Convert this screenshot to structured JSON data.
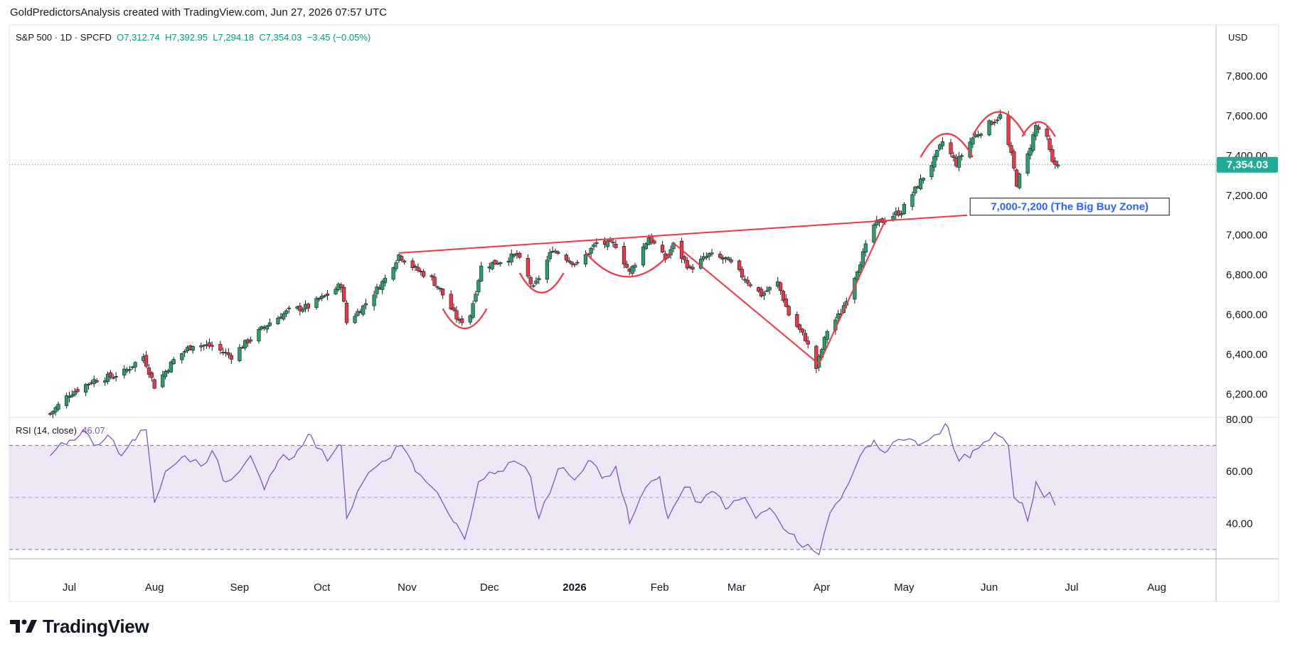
{
  "header": {
    "title": "GoldPredictorsAnalysis created with TradingView.com, Jun 27, 2026 07:57 UTC"
  },
  "legend": {
    "symbol": "S&P 500 · 1D · SPCFD",
    "open": "O7,312.74",
    "high": "H7,392.95",
    "low": "L7,294.18",
    "close": "C7,354.03",
    "change": "−3.45 (−0.05%)"
  },
  "currency": "USD",
  "last_price_label": "7,354.03",
  "annotation": "7,000-7,200 (The Big Buy Zone)",
  "rsi": {
    "label": "RSI (14, close)",
    "value": "46.07"
  },
  "footer": {
    "brand": "TradingView"
  },
  "colors": {
    "up": "#089981",
    "down": "#f23645",
    "up_fill": "#26a269",
    "pattern": "#f23645",
    "rsi_line": "#7e57c2",
    "rsi_band": "#ede7f6",
    "annotation_text": "#2962ff",
    "last_price_bg": "#22ab94"
  },
  "chart_data": [
    {
      "type": "candlestick",
      "title": "S&P 500 · 1D · SPCFD",
      "x_tick_labels": [
        "Jul",
        "Aug",
        "Sep",
        "Oct",
        "Nov",
        "Dec",
        "2026",
        "Feb",
        "Mar",
        "Apr",
        "May",
        "Jun",
        "Jul",
        "Aug"
      ],
      "y_tick_labels": [
        "6,200.00",
        "6,400.00",
        "6,600.00",
        "6,800.00",
        "7,000.00",
        "7,200.00",
        "7,400.00",
        "7,600.00",
        "7,800.00"
      ],
      "ylim": [
        6090,
        8040
      ],
      "last_price": 7354.03,
      "grid": false,
      "close_path": [
        [
          "2025-06-24",
          6100
        ],
        [
          "2025-07-01",
          6200
        ],
        [
          "2025-07-10",
          6270
        ],
        [
          "2025-07-20",
          6300
        ],
        [
          "2025-07-28",
          6390
        ],
        [
          "2025-08-01",
          6240
        ],
        [
          "2025-08-08",
          6370
        ],
        [
          "2025-08-15",
          6450
        ],
        [
          "2025-08-22",
          6440
        ],
        [
          "2025-08-29",
          6390
        ],
        [
          "2025-09-05",
          6480
        ],
        [
          "2025-09-12",
          6560
        ],
        [
          "2025-09-19",
          6620
        ],
        [
          "2025-09-26",
          6640
        ],
        [
          "2025-10-03",
          6700
        ],
        [
          "2025-10-08",
          6750
        ],
        [
          "2025-10-10",
          6560
        ],
        [
          "2025-10-16",
          6640
        ],
        [
          "2025-10-24",
          6780
        ],
        [
          "2025-10-29",
          6900
        ],
        [
          "2025-11-04",
          6830
        ],
        [
          "2025-11-10",
          6780
        ],
        [
          "2025-11-14",
          6700
        ],
        [
          "2025-11-20",
          6560
        ],
        [
          "2025-11-24",
          6600
        ],
        [
          "2025-11-28",
          6840
        ],
        [
          "2025-12-05",
          6870
        ],
        [
          "2025-12-11",
          6900
        ],
        [
          "2025-12-17",
          6730
        ],
        [
          "2025-12-24",
          6930
        ],
        [
          "2026-01-02",
          6850
        ],
        [
          "2026-01-09",
          6960
        ],
        [
          "2026-01-16",
          6950
        ],
        [
          "2026-01-21",
          6810
        ],
        [
          "2026-01-28",
          6990
        ],
        [
          "2026-02-03",
          6880
        ],
        [
          "2026-02-06",
          6950
        ],
        [
          "2026-02-12",
          6830
        ],
        [
          "2026-02-19",
          6900
        ],
        [
          "2026-02-26",
          6870
        ],
        [
          "2026-03-04",
          6780
        ],
        [
          "2026-03-10",
          6700
        ],
        [
          "2026-03-16",
          6760
        ],
        [
          "2026-03-20",
          6600
        ],
        [
          "2026-03-26",
          6480
        ],
        [
          "2026-03-30",
          6330
        ],
        [
          "2026-04-03",
          6520
        ],
        [
          "2026-04-08",
          6610
        ],
        [
          "2026-04-14",
          6830
        ],
        [
          "2026-04-20",
          7050
        ],
        [
          "2026-04-24",
          7080
        ],
        [
          "2026-04-30",
          7120
        ],
        [
          "2026-05-06",
          7250
        ],
        [
          "2026-05-12",
          7380
        ],
        [
          "2026-05-15",
          7470
        ],
        [
          "2026-05-20",
          7360
        ],
        [
          "2026-05-26",
          7490
        ],
        [
          "2026-06-01",
          7560
        ],
        [
          "2026-06-05",
          7600
        ],
        [
          "2026-06-09",
          7400
        ],
        [
          "2026-06-11",
          7260
        ],
        [
          "2026-06-15",
          7400
        ],
        [
          "2026-06-18",
          7550
        ],
        [
          "2026-06-22",
          7480
        ],
        [
          "2026-06-24",
          7360
        ],
        [
          "2026-06-26",
          7354.03
        ]
      ],
      "annotations": [
        {
          "type": "trendline",
          "points": [
            [
              "2025-10-29",
              6910
            ],
            [
              "2026-05-24",
              7100
            ]
          ]
        },
        {
          "type": "line",
          "points": [
            [
              "2026-02-06",
              6960
            ],
            [
              "2026-03-31",
              6350
            ]
          ]
        },
        {
          "type": "line",
          "points": [
            [
              "2026-03-31",
              6350
            ],
            [
              "2026-04-24",
              7070
            ]
          ]
        },
        {
          "type": "arc",
          "from": "2025-11-14",
          "to": "2025-11-30",
          "level": 6530
        },
        {
          "type": "arc",
          "from": "2025-12-12",
          "to": "2025-12-28",
          "level": 6710
        },
        {
          "type": "arc",
          "from": "2026-01-05",
          "to": "2026-02-05",
          "level": 6790
        },
        {
          "type": "arc_top",
          "from": "2026-05-07",
          "to": "2026-05-26",
          "level": 7510
        },
        {
          "type": "arc_top",
          "from": "2026-05-26",
          "to": "2026-06-14",
          "level": 7620
        },
        {
          "type": "arc_top",
          "from": "2026-06-13",
          "to": "2026-06-25",
          "level": 7570
        },
        {
          "type": "label",
          "text": "7,000-7,200 (The Big Buy Zone)",
          "at": [
            "2026-05-24",
            7100
          ]
        }
      ]
    },
    {
      "type": "line",
      "title": "RSI (14, close)",
      "y_tick_labels": [
        "40.00",
        "60.00",
        "80.00"
      ],
      "ylim": [
        27,
        80
      ],
      "bands": [
        30,
        50,
        70
      ],
      "last_value": 46.07,
      "series": [
        {
          "values": [
            [
              "2025-06-24",
              66
            ],
            [
              "2025-07-01",
              72
            ],
            [
              "2025-07-06",
              76
            ],
            [
              "2025-07-10",
              70
            ],
            [
              "2025-07-15",
              74
            ],
            [
              "2025-07-20",
              66
            ],
            [
              "2025-07-25",
              72
            ],
            [
              "2025-07-29",
              76
            ],
            [
              "2025-08-01",
              48
            ],
            [
              "2025-08-05",
              60
            ],
            [
              "2025-08-12",
              66
            ],
            [
              "2025-08-18",
              62
            ],
            [
              "2025-08-22",
              68
            ],
            [
              "2025-08-27",
              56
            ],
            [
              "2025-09-01",
              60
            ],
            [
              "2025-09-05",
              66
            ],
            [
              "2025-09-10",
              53
            ],
            [
              "2025-09-15",
              64
            ],
            [
              "2025-09-22",
              68
            ],
            [
              "2025-09-27",
              74
            ],
            [
              "2025-10-03",
              64
            ],
            [
              "2025-10-08",
              70
            ],
            [
              "2025-10-10",
              42
            ],
            [
              "2025-10-16",
              56
            ],
            [
              "2025-10-21",
              62
            ],
            [
              "2025-10-24",
              64
            ],
            [
              "2025-10-30",
              70
            ],
            [
              "2025-11-04",
              60
            ],
            [
              "2025-11-10",
              54
            ],
            [
              "2025-11-14",
              48
            ],
            [
              "2025-11-19",
              40
            ],
            [
              "2025-11-22",
              34
            ],
            [
              "2025-11-27",
              56
            ],
            [
              "2025-12-04",
              60
            ],
            [
              "2025-12-10",
              64
            ],
            [
              "2025-12-16",
              58
            ],
            [
              "2025-12-19",
              42
            ],
            [
              "2025-12-26",
              61
            ],
            [
              "2026-01-02",
              58
            ],
            [
              "2026-01-07",
              64
            ],
            [
              "2026-01-12",
              58
            ],
            [
              "2026-01-16",
              62
            ],
            [
              "2026-01-21",
              40
            ],
            [
              "2026-01-27",
              54
            ],
            [
              "2026-02-01",
              58
            ],
            [
              "2026-02-04",
              42
            ],
            [
              "2026-02-10",
              54
            ],
            [
              "2026-02-16",
              48
            ],
            [
              "2026-02-21",
              52
            ],
            [
              "2026-02-26",
              46
            ],
            [
              "2026-03-04",
              50
            ],
            [
              "2026-03-08",
              42
            ],
            [
              "2026-03-13",
              46
            ],
            [
              "2026-03-18",
              38
            ],
            [
              "2026-03-23",
              33
            ],
            [
              "2026-03-27",
              32
            ],
            [
              "2026-03-31",
              28
            ],
            [
              "2026-04-04",
              44
            ],
            [
              "2026-04-09",
              52
            ],
            [
              "2026-04-15",
              66
            ],
            [
              "2026-04-20",
              72
            ],
            [
              "2026-04-25",
              68
            ],
            [
              "2026-05-01",
              72
            ],
            [
              "2026-05-06",
              70
            ],
            [
              "2026-05-12",
              74
            ],
            [
              "2026-05-17",
              77
            ],
            [
              "2026-05-21",
              64
            ],
            [
              "2026-05-26",
              68
            ],
            [
              "2026-06-01",
              72
            ],
            [
              "2026-06-04",
              74
            ],
            [
              "2026-06-08",
              70
            ],
            [
              "2026-06-10",
              50
            ],
            [
              "2026-06-13",
              48
            ],
            [
              "2026-06-15",
              41
            ],
            [
              "2026-06-18",
              56
            ],
            [
              "2026-06-21",
              50
            ],
            [
              "2026-06-23",
              52
            ],
            [
              "2026-06-25",
              47
            ],
            [
              "2026-06-26",
              46.07
            ]
          ]
        }
      ]
    }
  ]
}
